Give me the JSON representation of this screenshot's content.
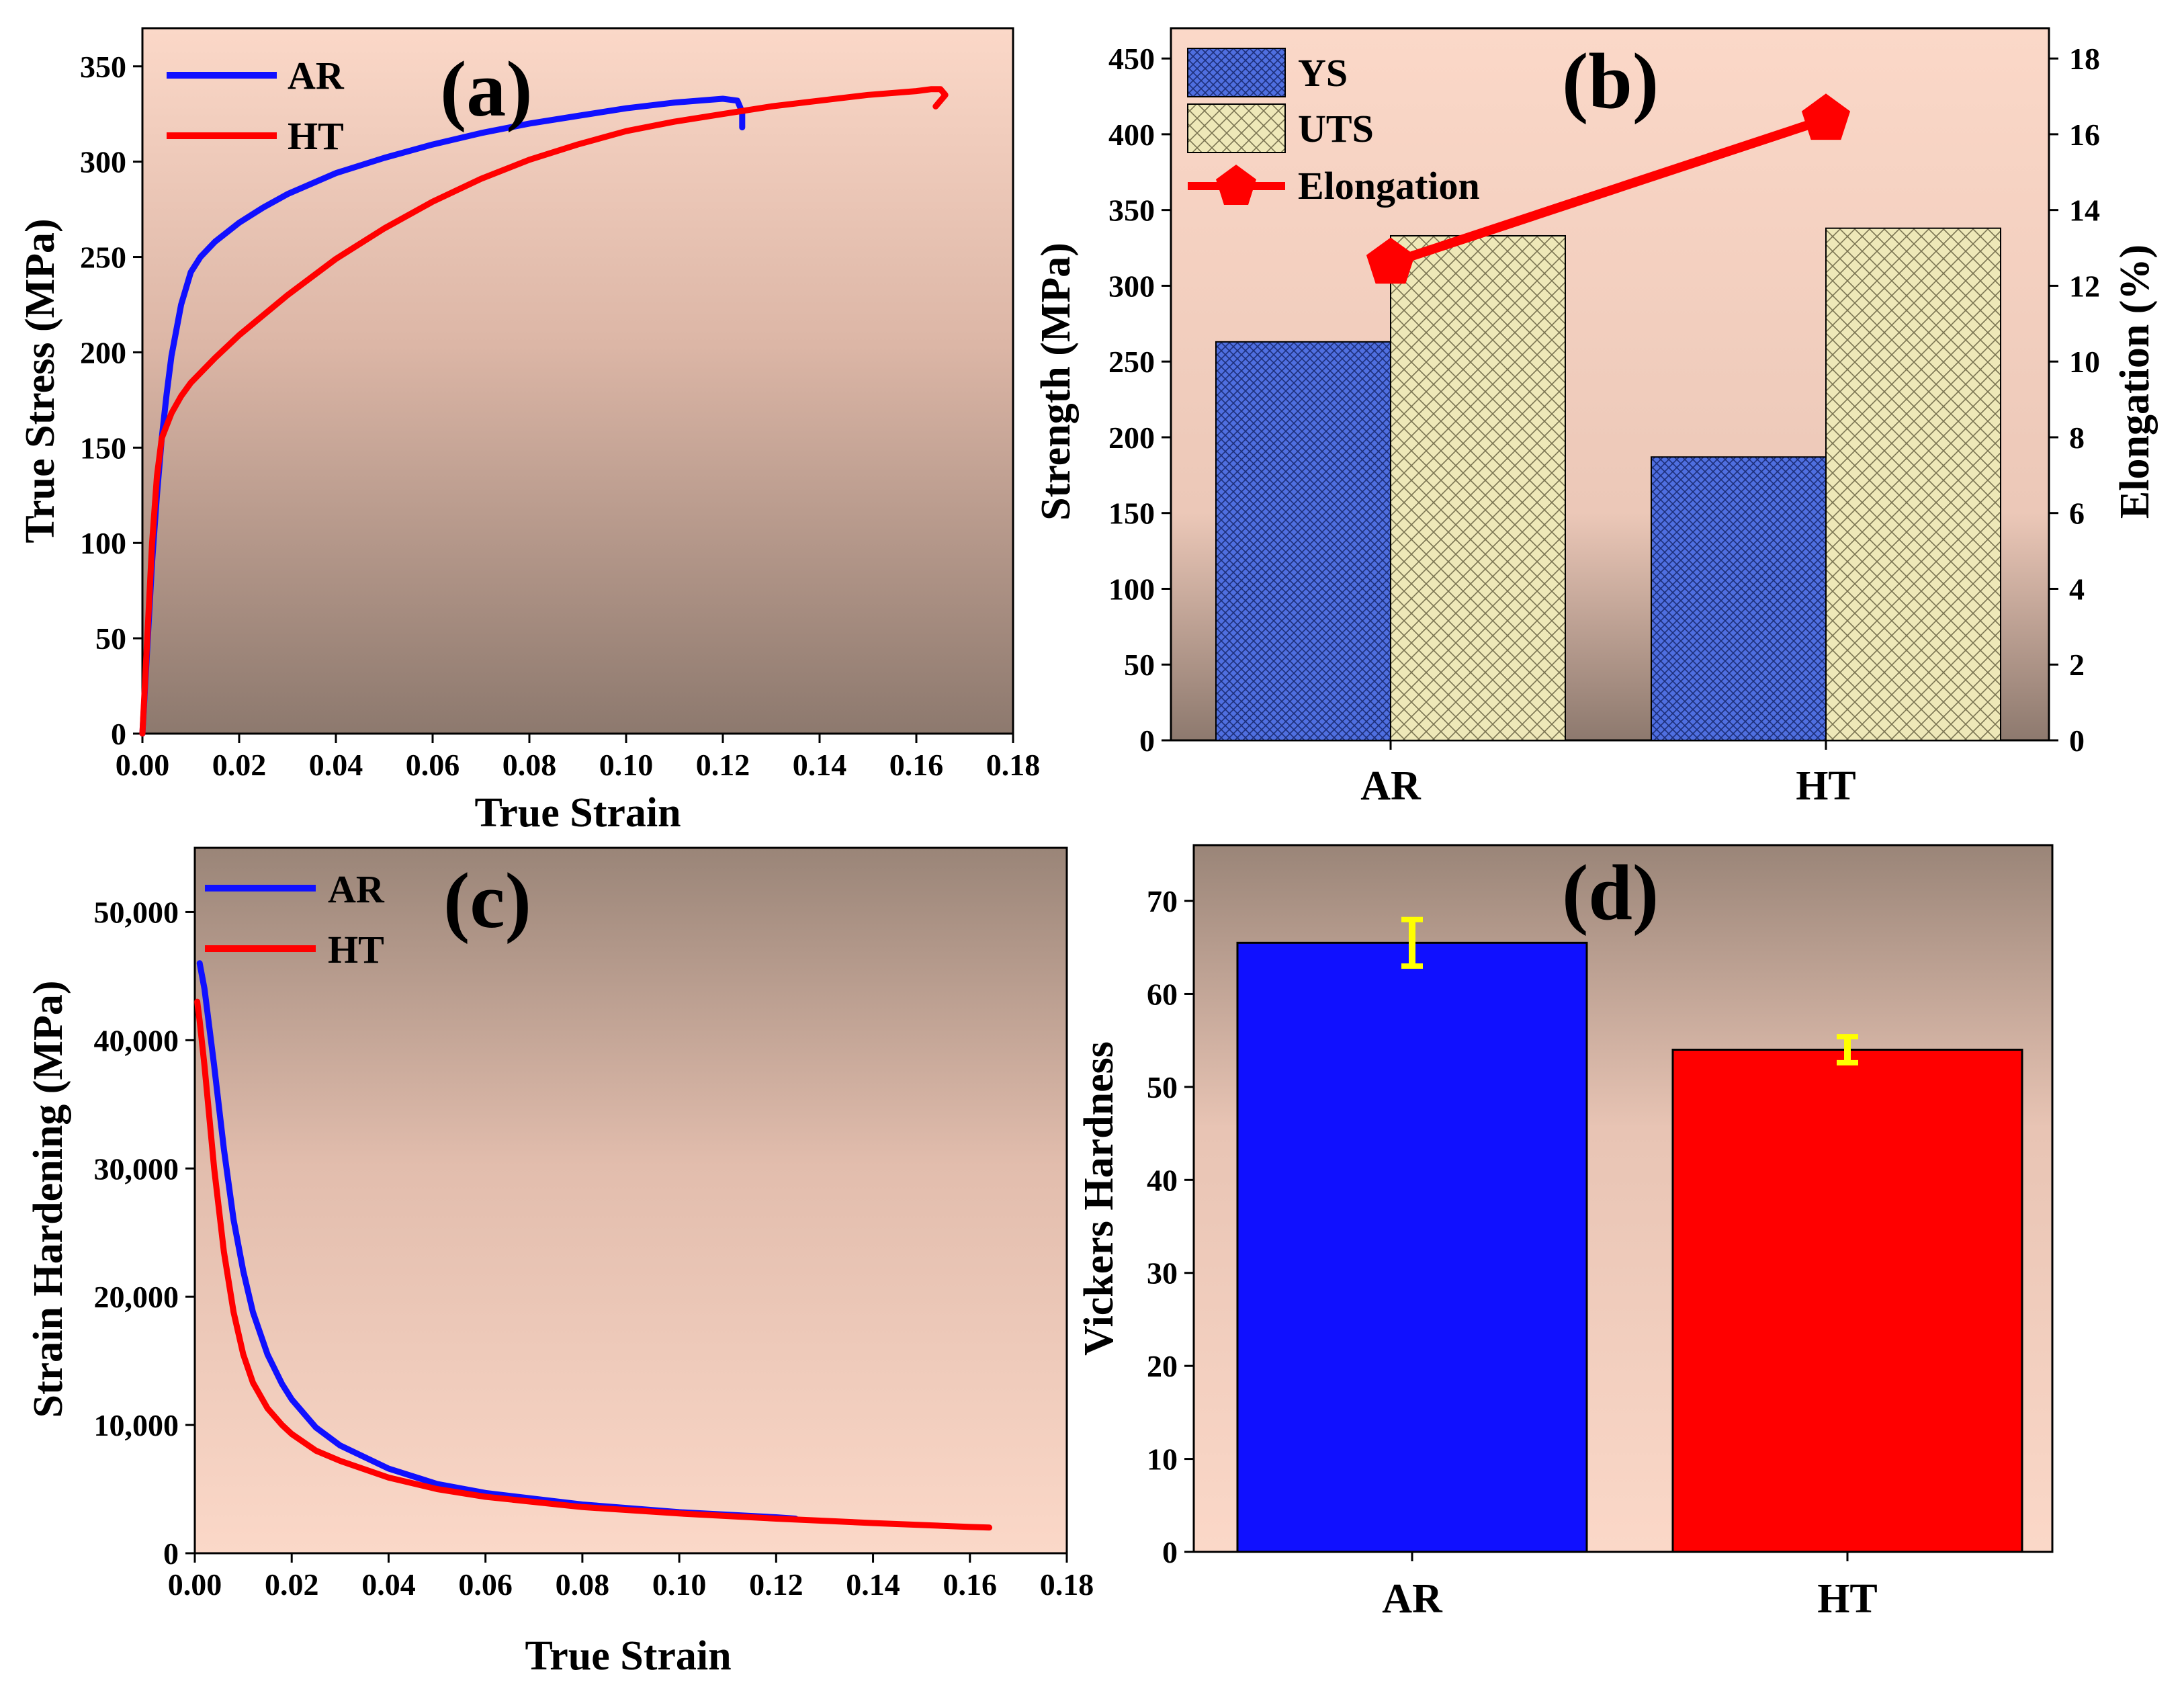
{
  "colors": {
    "ar": "#1010ff",
    "ht": "#ff0000",
    "ys_fill": "#4f6fe0",
    "uts_fill": "#eee8b8",
    "error_bar": "#ffff00",
    "bg_light": "#fbd8c8",
    "bg_dark": "#8f7b70"
  },
  "panels": {
    "a": {
      "label": "(a)",
      "chart_data": {
        "type": "line",
        "xlabel": "True Strain",
        "ylabel": "True Stress (MPa)",
        "xlim": [
          0,
          0.18
        ],
        "ylim": [
          0,
          370
        ],
        "xticks": [
          "0.00",
          "0.02",
          "0.04",
          "0.06",
          "0.08",
          "0.10",
          "0.12",
          "0.14",
          "0.16",
          "0.18"
        ],
        "yticks": [
          "0",
          "50",
          "100",
          "150",
          "200",
          "250",
          "300",
          "350"
        ],
        "series": [
          {
            "name": "AR",
            "color": "#1010ff",
            "x": [
              0,
              0.001,
              0.002,
              0.003,
              0.004,
              0.005,
              0.006,
              0.008,
              0.01,
              0.012,
              0.015,
              0.02,
              0.025,
              0.03,
              0.04,
              0.05,
              0.06,
              0.07,
              0.08,
              0.09,
              0.1,
              0.11,
              0.115,
              0.12,
              0.123,
              0.124,
              0.124
            ],
            "y": [
              0,
              45,
              90,
              125,
              155,
              178,
              198,
              225,
              242,
              250,
              258,
              268,
              276,
              283,
              294,
              302,
              309,
              315,
              320,
              324,
              328,
              331,
              332,
              333,
              332,
              326,
              318
            ]
          },
          {
            "name": "HT",
            "color": "#ff0000",
            "x": [
              0,
              0.001,
              0.002,
              0.003,
              0.004,
              0.006,
              0.008,
              0.01,
              0.015,
              0.02,
              0.03,
              0.04,
              0.05,
              0.06,
              0.07,
              0.08,
              0.09,
              0.1,
              0.11,
              0.12,
              0.13,
              0.14,
              0.15,
              0.16,
              0.163,
              0.165,
              0.166,
              0.165,
              0.164
            ],
            "y": [
              0,
              50,
              100,
              135,
              155,
              168,
              177,
              184,
              197,
              209,
              230,
              249,
              265,
              279,
              291,
              301,
              309,
              316,
              321,
              325,
              329,
              332,
              335,
              337,
              338,
              338,
              335,
              332,
              329
            ]
          }
        ]
      }
    },
    "b": {
      "label": "(b)",
      "chart_data": {
        "type": "bar",
        "categories": [
          "AR",
          "HT"
        ],
        "ylabel": "Strength (MPa)",
        "y2label": "Elongation (%)",
        "ylim": [
          0,
          470
        ],
        "y2lim": [
          0,
          18.8
        ],
        "yticks": [
          "0",
          "50",
          "100",
          "150",
          "200",
          "250",
          "300",
          "350",
          "400",
          "450"
        ],
        "y2ticks": [
          "0",
          "2",
          "4",
          "6",
          "8",
          "10",
          "12",
          "14",
          "16",
          "18"
        ],
        "series": [
          {
            "name": "YS",
            "values": [
              263,
              187
            ]
          },
          {
            "name": "UTS",
            "values": [
              333,
              338
            ]
          },
          {
            "name": "Elongation",
            "axis": "right",
            "values": [
              12.6,
              16.4
            ]
          }
        ],
        "legend": [
          "YS",
          "UTS",
          "Elongation"
        ]
      }
    },
    "c": {
      "label": "(c)",
      "chart_data": {
        "type": "line",
        "xlabel": "True Strain",
        "ylabel": "Strain Hardening (MPa)",
        "xlim": [
          0,
          0.18
        ],
        "ylim": [
          0,
          55000
        ],
        "xticks": [
          "0.00",
          "0.02",
          "0.04",
          "0.06",
          "0.08",
          "0.10",
          "0.12",
          "0.14",
          "0.16",
          "0.18"
        ],
        "yticks": [
          "0",
          "10,000",
          "20,000",
          "30,000",
          "40,000",
          "50,000"
        ],
        "series": [
          {
            "name": "AR",
            "color": "#1010ff",
            "x": [
              0.001,
              0.002,
              0.004,
              0.006,
              0.008,
              0.01,
              0.012,
              0.015,
              0.018,
              0.02,
              0.025,
              0.03,
              0.04,
              0.05,
              0.06,
              0.08,
              0.1,
              0.12,
              0.124
            ],
            "y": [
              46000,
              44000,
              38000,
              31500,
              26000,
              22000,
              18800,
              15500,
              13200,
              12000,
              9800,
              8400,
              6600,
              5400,
              4700,
              3800,
              3200,
              2800,
              2700
            ]
          },
          {
            "name": "HT",
            "color": "#ff0000",
            "x": [
              0.0005,
              0.001,
              0.002,
              0.004,
              0.006,
              0.008,
              0.01,
              0.012,
              0.015,
              0.018,
              0.02,
              0.025,
              0.03,
              0.04,
              0.05,
              0.06,
              0.08,
              0.1,
              0.12,
              0.14,
              0.16,
              0.164
            ],
            "y": [
              43000,
              41500,
              38000,
              30000,
              23500,
              18800,
              15500,
              13300,
              11300,
              10000,
              9300,
              8000,
              7200,
              5900,
              5000,
              4400,
              3600,
              3100,
              2700,
              2350,
              2050,
              2000
            ]
          }
        ]
      }
    },
    "d": {
      "label": "(d)",
      "chart_data": {
        "type": "bar",
        "categories": [
          "AR",
          "HT"
        ],
        "ylabel": "Vickers Hardness",
        "ylim": [
          0,
          76
        ],
        "yticks": [
          "0",
          "10",
          "20",
          "30",
          "40",
          "50",
          "60",
          "70"
        ],
        "values": [
          65.5,
          54
        ],
        "errors": [
          2.5,
          1.4
        ],
        "colors": [
          "#1010ff",
          "#ff0000"
        ]
      }
    }
  }
}
